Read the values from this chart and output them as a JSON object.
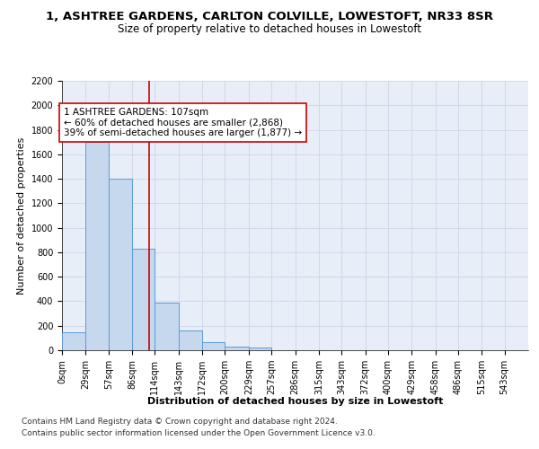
{
  "title": "1, ASHTREE GARDENS, CARLTON COLVILLE, LOWESTOFT, NR33 8SR",
  "subtitle": "Size of property relative to detached houses in Lowestoft",
  "xlabel": "Distribution of detached houses by size in Lowestoft",
  "ylabel": "Number of detached properties",
  "bar_edges": [
    0,
    29,
    57,
    86,
    114,
    143,
    172,
    200,
    229,
    257,
    286,
    315,
    343,
    372,
    400,
    429,
    458,
    486,
    515,
    543,
    572
  ],
  "bar_heights": [
    150,
    1700,
    1400,
    830,
    390,
    160,
    65,
    30,
    25,
    0,
    0,
    0,
    0,
    0,
    0,
    0,
    0,
    0,
    0,
    0
  ],
  "bar_color": "#c5d8ee",
  "bar_edge_color": "#5b9bd5",
  "property_size": 107,
  "marker_line_color": "#cc0000",
  "annotation_text": "1 ASHTREE GARDENS: 107sqm\n← 60% of detached houses are smaller (2,868)\n39% of semi-detached houses are larger (1,877) →",
  "annotation_box_color": "#ffffff",
  "annotation_box_edge_color": "#cc0000",
  "ylim": [
    0,
    2200
  ],
  "yticks": [
    0,
    200,
    400,
    600,
    800,
    1000,
    1200,
    1400,
    1600,
    1800,
    2000,
    2200
  ],
  "grid_color": "#d0d8e8",
  "background_color": "#e8eef8",
  "footer_line1": "Contains HM Land Registry data © Crown copyright and database right 2024.",
  "footer_line2": "Contains public sector information licensed under the Open Government Licence v3.0.",
  "title_fontsize": 9.5,
  "subtitle_fontsize": 8.5,
  "axis_label_fontsize": 8,
  "tick_fontsize": 7,
  "annotation_fontsize": 7.5,
  "footer_fontsize": 6.5
}
